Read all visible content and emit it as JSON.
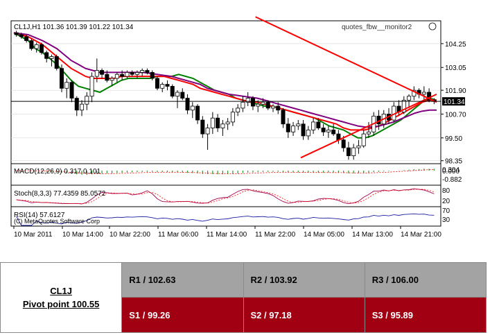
{
  "chart_data": {
    "type": "candlestick",
    "symbol_header": "CL1J,H1  101.36 101.39 101.22 101.34",
    "watermark": "quotes_fbw__monitor2",
    "copyright": "(C) MetaQuotes Software Corp",
    "current_price": "101.34",
    "ylim": [
      98.2,
      105.4
    ],
    "y_ticks": [
      "104.25",
      "103.05",
      "101.90",
      "100.70",
      "99.50",
      "98.35"
    ],
    "x_ticks": [
      "10 Mar 2011",
      "10 Mar 14:00",
      "10 Mar 22:00",
      "11 Mar 06:00",
      "11 Mar 14:00",
      "11 Mar 22:00",
      "14 Mar 05:00",
      "14 Mar 13:00",
      "14 Mar 21:00"
    ],
    "candles": [
      [
        104.8,
        104.9,
        104.6,
        104.7
      ],
      [
        104.7,
        104.8,
        104.5,
        104.6
      ],
      [
        104.6,
        104.7,
        104.3,
        104.4
      ],
      [
        104.4,
        104.5,
        103.9,
        104.0
      ],
      [
        104.0,
        104.3,
        103.8,
        104.2
      ],
      [
        104.2,
        104.3,
        103.7,
        103.8
      ],
      [
        103.8,
        103.9,
        103.3,
        103.5
      ],
      [
        103.5,
        103.7,
        103.1,
        103.6
      ],
      [
        103.6,
        103.7,
        102.9,
        103.0
      ],
      [
        103.0,
        103.2,
        101.8,
        102.0
      ],
      [
        102.0,
        102.5,
        101.5,
        102.3
      ],
      [
        102.3,
        102.4,
        101.3,
        101.5
      ],
      [
        101.5,
        101.6,
        100.6,
        100.9
      ],
      [
        100.9,
        101.4,
        100.6,
        101.2
      ],
      [
        101.2,
        101.8,
        100.9,
        101.6
      ],
      [
        101.6,
        102.8,
        101.3,
        102.6
      ],
      [
        102.6,
        103.5,
        102.3,
        102.9
      ],
      [
        102.9,
        103.0,
        102.5,
        102.7
      ],
      [
        102.7,
        102.9,
        102.3,
        102.4
      ],
      [
        102.4,
        102.6,
        102.1,
        102.5
      ],
      [
        102.5,
        102.8,
        102.3,
        102.7
      ],
      [
        102.7,
        102.9,
        102.4,
        102.6
      ],
      [
        102.6,
        102.9,
        102.5,
        102.8
      ],
      [
        102.8,
        102.9,
        102.6,
        102.7
      ],
      [
        102.7,
        102.9,
        102.5,
        102.8
      ],
      [
        102.8,
        103.0,
        102.6,
        102.9
      ],
      [
        102.9,
        103.0,
        102.7,
        102.8
      ],
      [
        102.8,
        102.9,
        102.4,
        102.5
      ],
      [
        102.5,
        102.6,
        101.9,
        102.0
      ],
      [
        102.0,
        102.3,
        101.8,
        102.2
      ],
      [
        102.2,
        102.4,
        101.9,
        102.1
      ],
      [
        102.1,
        102.2,
        101.5,
        101.6
      ],
      [
        101.6,
        101.9,
        101.0,
        101.8
      ],
      [
        101.8,
        102.0,
        101.4,
        101.5
      ],
      [
        101.5,
        101.7,
        100.7,
        100.9
      ],
      [
        100.9,
        101.3,
        100.5,
        101.1
      ],
      [
        101.1,
        101.2,
        100.2,
        100.4
      ],
      [
        100.4,
        100.6,
        99.5,
        99.7
      ],
      [
        99.7,
        100.2,
        98.9,
        100.0
      ],
      [
        100.0,
        100.8,
        99.7,
        100.5
      ],
      [
        100.5,
        100.7,
        99.8,
        100.0
      ],
      [
        100.0,
        100.4,
        99.6,
        100.2
      ],
      [
        100.2,
        100.5,
        99.9,
        100.3
      ],
      [
        100.3,
        101.0,
        100.1,
        100.8
      ],
      [
        100.8,
        101.2,
        100.6,
        101.0
      ],
      [
        101.0,
        101.6,
        100.8,
        101.3
      ],
      [
        101.3,
        101.8,
        101.1,
        101.5
      ],
      [
        101.5,
        101.6,
        100.9,
        101.1
      ],
      [
        101.1,
        101.4,
        100.8,
        101.2
      ],
      [
        101.2,
        101.5,
        101.0,
        101.3
      ],
      [
        101.3,
        101.4,
        100.9,
        101.0
      ],
      [
        101.0,
        101.2,
        100.8,
        101.1
      ],
      [
        101.1,
        101.3,
        100.7,
        100.9
      ],
      [
        100.9,
        101.0,
        100.0,
        100.2
      ],
      [
        100.2,
        100.5,
        99.5,
        99.8
      ],
      [
        99.8,
        100.3,
        99.6,
        100.1
      ],
      [
        100.1,
        100.4,
        99.9,
        100.2
      ],
      [
        100.2,
        100.4,
        99.4,
        99.6
      ],
      [
        99.6,
        100.1,
        99.4,
        99.9
      ],
      [
        99.9,
        100.5,
        99.7,
        100.3
      ],
      [
        100.3,
        100.5,
        99.9,
        100.0
      ],
      [
        100.0,
        100.2,
        99.6,
        99.8
      ],
      [
        99.8,
        100.1,
        99.5,
        99.9
      ],
      [
        99.9,
        100.2,
        99.6,
        99.7
      ],
      [
        99.7,
        99.9,
        99.2,
        99.4
      ],
      [
        99.4,
        99.6,
        98.8,
        99.0
      ],
      [
        99.0,
        99.3,
        98.4,
        98.6
      ],
      [
        98.6,
        99.2,
        98.4,
        99.0
      ],
      [
        99.0,
        99.4,
        98.7,
        99.1
      ],
      [
        99.1,
        99.9,
        99.0,
        99.7
      ],
      [
        99.7,
        100.3,
        99.5,
        99.8
      ],
      [
        99.8,
        100.8,
        99.6,
        100.6
      ],
      [
        100.6,
        100.9,
        99.9,
        100.2
      ],
      [
        100.2,
        100.9,
        100.0,
        100.7
      ],
      [
        100.7,
        101.0,
        100.2,
        100.4
      ],
      [
        100.4,
        101.3,
        100.3,
        101.1
      ],
      [
        101.1,
        101.4,
        100.6,
        100.8
      ],
      [
        100.8,
        101.6,
        100.7,
        101.4
      ],
      [
        101.4,
        101.7,
        101.0,
        101.6
      ],
      [
        101.6,
        102.1,
        101.4,
        101.9
      ],
      [
        101.9,
        102.0,
        101.5,
        101.7
      ],
      [
        101.7,
        102.1,
        101.4,
        101.8
      ],
      [
        101.8,
        102.0,
        101.3,
        101.4
      ],
      [
        101.4,
        101.5,
        101.2,
        101.34
      ]
    ],
    "ma_lines": [
      {
        "color": "#008000",
        "values": [
          104.8,
          104.6,
          104.4,
          104.0,
          103.8,
          103.5,
          103.2,
          102.8,
          102.4,
          102.1,
          102.0,
          101.9,
          101.8,
          102.0,
          102.2,
          102.4,
          102.5,
          102.5,
          102.5,
          102.5,
          102.6,
          102.6,
          102.6,
          102.7,
          102.6,
          102.5,
          102.3,
          102.1,
          101.9,
          101.8,
          101.7,
          101.5,
          101.4,
          101.3,
          101.2,
          101.1,
          101.1,
          101.0,
          100.9,
          100.8,
          100.7,
          100.6,
          100.5,
          100.3,
          100.1,
          100.0,
          99.9,
          99.7,
          99.5,
          99.5,
          99.6,
          99.8,
          100.0,
          100.2,
          100.4,
          100.7,
          101.0,
          101.3,
          101.5,
          101.4
        ]
      },
      {
        "color": "#ff0000",
        "values": [
          104.8,
          104.7,
          104.6,
          104.4,
          104.2,
          103.9,
          103.6,
          103.3,
          103.0,
          102.8,
          102.6,
          102.5,
          102.5,
          102.5,
          102.5,
          102.6,
          102.6,
          102.6,
          102.6,
          102.6,
          102.6,
          102.6,
          102.5,
          102.4,
          102.3,
          102.2,
          102.0,
          101.9,
          101.8,
          101.7,
          101.6,
          101.5,
          101.4,
          101.3,
          101.3,
          101.2,
          101.1,
          101.0,
          100.9,
          100.8,
          100.7,
          100.6,
          100.5,
          100.4,
          100.3,
          100.2,
          100.0,
          99.9,
          99.9,
          99.9,
          100.0,
          100.1,
          100.3,
          100.5,
          100.7,
          100.9,
          101.1,
          101.3,
          101.4,
          101.4
        ]
      },
      {
        "color": "#800080",
        "values": [
          104.8,
          104.75,
          104.7,
          104.55,
          104.4,
          104.2,
          104.0,
          103.7,
          103.4,
          103.2,
          103.0,
          102.9,
          102.8,
          102.8,
          102.8,
          102.8,
          102.8,
          102.8,
          102.8,
          102.75,
          102.7,
          102.65,
          102.6,
          102.5,
          102.4,
          102.3,
          102.2,
          102.0,
          101.9,
          101.8,
          101.7,
          101.65,
          101.6,
          101.55,
          101.5,
          101.4,
          101.3,
          101.2,
          101.1,
          101.0,
          100.9,
          100.8,
          100.7,
          100.6,
          100.5,
          100.4,
          100.3,
          100.2,
          100.1,
          100.05,
          100.05,
          100.1,
          100.2,
          100.3,
          100.45,
          100.6,
          100.75,
          100.85,
          100.9,
          100.9
        ]
      }
    ],
    "trendlines": [
      {
        "from": [
          48.0,
          105.6
        ],
        "to": [
          84.0,
          101.3
        ]
      },
      {
        "from": [
          57.0,
          98.5
        ],
        "to": [
          84.0,
          101.7
        ]
      }
    ],
    "macd": {
      "label": "MACD(12,26,9) 0.317 0.101",
      "y_ticks": [
        "0.304",
        "0.000",
        "-0.882"
      ]
    },
    "stoch": {
      "label": "Stoch(8,3,3) 77.4359 85.0572",
      "y_ticks": [
        "80",
        "20"
      ]
    },
    "rsi": {
      "label": "RSI(14) 57.6127",
      "y_ticks": [
        "70",
        "30"
      ]
    }
  },
  "pivot": {
    "symbol": "CL1J",
    "pivot_text": "Pivot point 100.55",
    "r1": "R1 / 102.63",
    "r2": "R2  / 103.92",
    "r3": "R3 / 106.00",
    "s1": "S1 / 99.26",
    "s2": "S2 /  97.18",
    "s3": "S3 /  95.89"
  }
}
